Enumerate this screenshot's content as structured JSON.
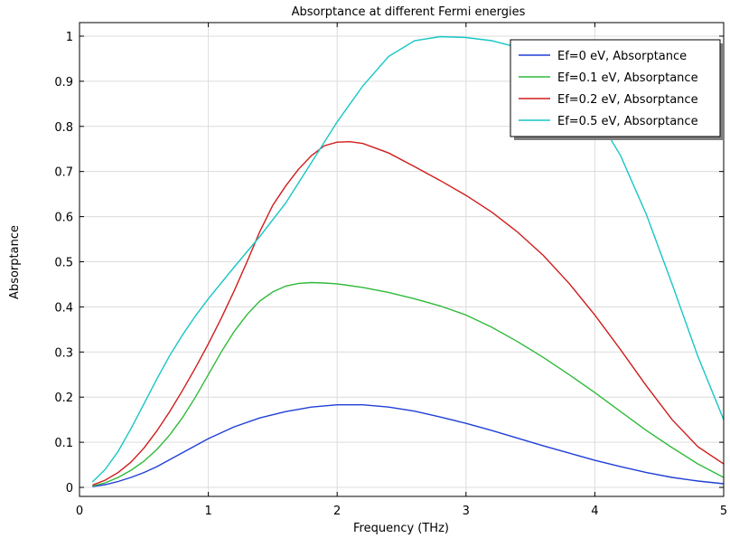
{
  "chart_data": {
    "type": "line",
    "title": "Absorptance at different Fermi energies",
    "xlabel": "Frequency (THz)",
    "ylabel": "Absorptance",
    "xlim": [
      0,
      5
    ],
    "ylim": [
      -0.02,
      1.03
    ],
    "xticks": [
      0,
      1,
      2,
      3,
      4,
      5
    ],
    "xtick_labels": [
      "0",
      "1",
      "2",
      "3",
      "4",
      "5"
    ],
    "yticks": [
      0,
      0.1,
      0.2,
      0.3,
      0.4,
      0.5,
      0.6,
      0.7,
      0.8,
      0.9,
      1
    ],
    "ytick_labels": [
      "0",
      "0.1",
      "0.2",
      "0.3",
      "0.4",
      "0.5",
      "0.6",
      "0.7",
      "0.8",
      "0.9",
      "1"
    ],
    "grid": true,
    "legend_position": "top-right",
    "series": [
      {
        "name": "Ef=0 eV, Absorptance",
        "color": "#1f3fd6",
        "x": [
          0.1,
          0.2,
          0.3,
          0.4,
          0.5,
          0.6,
          0.8,
          1.0,
          1.2,
          1.4,
          1.6,
          1.8,
          2.0,
          2.2,
          2.4,
          2.6,
          2.8,
          3.0,
          3.2,
          3.4,
          3.6,
          3.8,
          4.0,
          4.2,
          4.4,
          4.6,
          4.8,
          5.0
        ],
        "y": [
          0.002,
          0.006,
          0.013,
          0.022,
          0.033,
          0.046,
          0.077,
          0.108,
          0.134,
          0.154,
          0.168,
          0.178,
          0.183,
          0.183,
          0.178,
          0.169,
          0.156,
          0.142,
          0.126,
          0.109,
          0.092,
          0.076,
          0.06,
          0.046,
          0.033,
          0.022,
          0.014,
          0.008
        ]
      },
      {
        "name": "Ef=0.1 eV, Absorptance",
        "color": "#2fba3a",
        "x": [
          0.1,
          0.2,
          0.3,
          0.4,
          0.5,
          0.6,
          0.7,
          0.8,
          0.9,
          1.0,
          1.1,
          1.2,
          1.3,
          1.4,
          1.5,
          1.6,
          1.7,
          1.8,
          1.9,
          2.0,
          2.2,
          2.4,
          2.6,
          2.8,
          3.0,
          3.2,
          3.4,
          3.6,
          3.8,
          4.0,
          4.2,
          4.4,
          4.6,
          4.8,
          5.0
        ],
        "y": [
          0.003,
          0.01,
          0.022,
          0.038,
          0.058,
          0.084,
          0.116,
          0.155,
          0.2,
          0.25,
          0.3,
          0.345,
          0.383,
          0.413,
          0.433,
          0.446,
          0.452,
          0.454,
          0.453,
          0.451,
          0.443,
          0.432,
          0.418,
          0.402,
          0.382,
          0.355,
          0.323,
          0.288,
          0.25,
          0.21,
          0.168,
          0.126,
          0.088,
          0.052,
          0.022
        ]
      },
      {
        "name": "Ef=0.2 eV, Absorptance",
        "color": "#d01c1c",
        "x": [
          0.1,
          0.2,
          0.3,
          0.4,
          0.5,
          0.6,
          0.7,
          0.8,
          0.9,
          1.0,
          1.1,
          1.2,
          1.3,
          1.4,
          1.5,
          1.6,
          1.7,
          1.8,
          1.9,
          2.0,
          2.1,
          2.2,
          2.4,
          2.6,
          2.8,
          3.0,
          3.2,
          3.4,
          3.6,
          3.8,
          4.0,
          4.2,
          4.4,
          4.6,
          4.8,
          5.0
        ],
        "y": [
          0.005,
          0.016,
          0.033,
          0.056,
          0.087,
          0.125,
          0.168,
          0.215,
          0.265,
          0.318,
          0.375,
          0.435,
          0.5,
          0.567,
          0.625,
          0.668,
          0.705,
          0.735,
          0.757,
          0.765,
          0.766,
          0.762,
          0.741,
          0.711,
          0.68,
          0.647,
          0.61,
          0.566,
          0.514,
          0.452,
          0.382,
          0.305,
          0.225,
          0.15,
          0.09,
          0.052
        ]
      },
      {
        "name": "Ef=0.5 eV, Absorptance",
        "color": "#17c6c6",
        "x": [
          0.1,
          0.2,
          0.3,
          0.4,
          0.5,
          0.6,
          0.7,
          0.8,
          0.9,
          1.0,
          1.2,
          1.4,
          1.6,
          1.8,
          2.0,
          2.2,
          2.4,
          2.6,
          2.8,
          3.0,
          3.2,
          3.4,
          3.6,
          3.8,
          4.0,
          4.2,
          4.4,
          4.6,
          4.8,
          5.0
        ],
        "y": [
          0.012,
          0.04,
          0.08,
          0.13,
          0.185,
          0.24,
          0.292,
          0.338,
          0.38,
          0.418,
          0.488,
          0.556,
          0.63,
          0.72,
          0.81,
          0.89,
          0.955,
          0.99,
          0.999,
          0.997,
          0.99,
          0.975,
          0.947,
          0.9,
          0.83,
          0.735,
          0.605,
          0.45,
          0.29,
          0.15
        ]
      }
    ]
  }
}
